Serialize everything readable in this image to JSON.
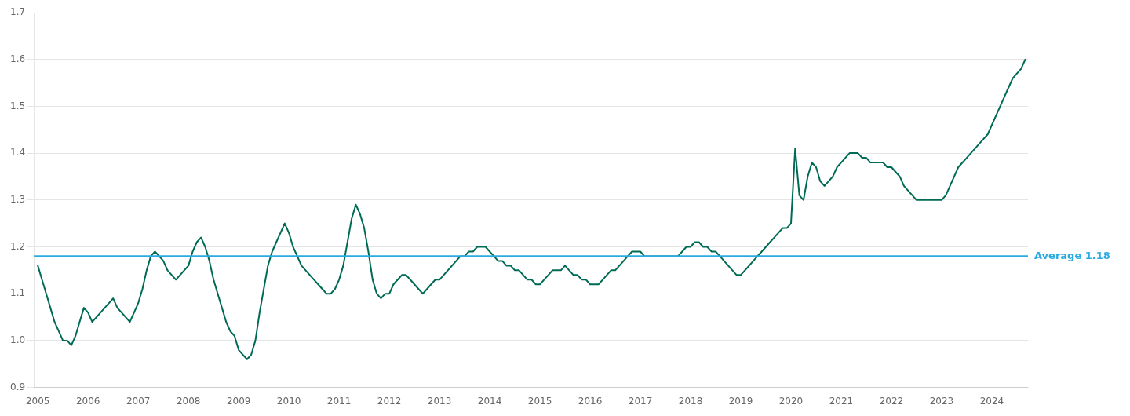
{
  "chart_data": {
    "type": "line",
    "x": [
      2005.0,
      2005.083,
      2005.167,
      2005.25,
      2005.333,
      2005.417,
      2005.5,
      2005.583,
      2005.667,
      2005.75,
      2005.833,
      2005.917,
      2006.0,
      2006.083,
      2006.167,
      2006.25,
      2006.333,
      2006.417,
      2006.5,
      2006.583,
      2006.667,
      2006.75,
      2006.833,
      2006.917,
      2007.0,
      2007.083,
      2007.167,
      2007.25,
      2007.333,
      2007.417,
      2007.5,
      2007.583,
      2007.667,
      2007.75,
      2007.833,
      2007.917,
      2008.0,
      2008.083,
      2008.167,
      2008.25,
      2008.333,
      2008.417,
      2008.5,
      2008.583,
      2008.667,
      2008.75,
      2008.833,
      2008.917,
      2009.0,
      2009.083,
      2009.167,
      2009.25,
      2009.333,
      2009.417,
      2009.5,
      2009.583,
      2009.667,
      2009.75,
      2009.833,
      2009.917,
      2010.0,
      2010.083,
      2010.167,
      2010.25,
      2010.333,
      2010.417,
      2010.5,
      2010.583,
      2010.667,
      2010.75,
      2010.833,
      2010.917,
      2011.0,
      2011.083,
      2011.167,
      2011.25,
      2011.333,
      2011.417,
      2011.5,
      2011.583,
      2011.667,
      2011.75,
      2011.833,
      2011.917,
      2012.0,
      2012.083,
      2012.167,
      2012.25,
      2012.333,
      2012.417,
      2012.5,
      2012.583,
      2012.667,
      2012.75,
      2012.833,
      2012.917,
      2013.0,
      2013.083,
      2013.167,
      2013.25,
      2013.333,
      2013.417,
      2013.5,
      2013.583,
      2013.667,
      2013.75,
      2013.833,
      2013.917,
      2014.0,
      2014.083,
      2014.167,
      2014.25,
      2014.333,
      2014.417,
      2014.5,
      2014.583,
      2014.667,
      2014.75,
      2014.833,
      2014.917,
      2015.0,
      2015.083,
      2015.167,
      2015.25,
      2015.333,
      2015.417,
      2015.5,
      2015.583,
      2015.667,
      2015.75,
      2015.833,
      2015.917,
      2016.0,
      2016.083,
      2016.167,
      2016.25,
      2016.333,
      2016.417,
      2016.5,
      2016.583,
      2016.667,
      2016.75,
      2016.833,
      2016.917,
      2017.0,
      2017.083,
      2017.167,
      2017.25,
      2017.333,
      2017.417,
      2017.5,
      2017.583,
      2017.667,
      2017.75,
      2017.833,
      2017.917,
      2018.0,
      2018.083,
      2018.167,
      2018.25,
      2018.333,
      2018.417,
      2018.5,
      2018.583,
      2018.667,
      2018.75,
      2018.833,
      2018.917,
      2019.0,
      2019.083,
      2019.167,
      2019.25,
      2019.333,
      2019.417,
      2019.5,
      2019.583,
      2019.667,
      2019.75,
      2019.833,
      2019.917,
      2020.0,
      2020.083,
      2020.167,
      2020.25,
      2020.333,
      2020.417,
      2020.5,
      2020.583,
      2020.667,
      2020.75,
      2020.833,
      2020.917,
      2021.0,
      2021.083,
      2021.167,
      2021.25,
      2021.333,
      2021.417,
      2021.5,
      2021.583,
      2021.667,
      2021.75,
      2021.833,
      2021.917,
      2022.0,
      2022.083,
      2022.167,
      2022.25,
      2022.333,
      2022.417,
      2022.5,
      2022.583,
      2022.667,
      2022.75,
      2022.833,
      2022.917,
      2023.0,
      2023.083,
      2023.167,
      2023.25,
      2023.333,
      2023.417,
      2023.5,
      2023.583,
      2023.667,
      2023.75,
      2023.833,
      2023.917,
      2024.0,
      2024.083,
      2024.167,
      2024.25,
      2024.333,
      2024.417,
      2024.5,
      2024.583,
      2024.667
    ],
    "series": [
      {
        "color": "#006B54",
        "values": [
          1.16,
          1.13,
          1.1,
          1.07,
          1.04,
          1.02,
          1.0,
          1.0,
          0.99,
          1.01,
          1.04,
          1.07,
          1.06,
          1.04,
          1.05,
          1.06,
          1.07,
          1.08,
          1.09,
          1.07,
          1.06,
          1.05,
          1.04,
          1.06,
          1.08,
          1.11,
          1.15,
          1.18,
          1.19,
          1.18,
          1.17,
          1.15,
          1.14,
          1.13,
          1.14,
          1.15,
          1.16,
          1.19,
          1.21,
          1.22,
          1.2,
          1.17,
          1.13,
          1.1,
          1.07,
          1.04,
          1.02,
          1.01,
          0.98,
          0.97,
          0.96,
          0.97,
          1.0,
          1.06,
          1.11,
          1.16,
          1.19,
          1.21,
          1.23,
          1.25,
          1.23,
          1.2,
          1.18,
          1.16,
          1.15,
          1.14,
          1.13,
          1.12,
          1.11,
          1.1,
          1.1,
          1.11,
          1.13,
          1.16,
          1.21,
          1.26,
          1.29,
          1.27,
          1.24,
          1.19,
          1.13,
          1.1,
          1.09,
          1.1,
          1.1,
          1.12,
          1.13,
          1.14,
          1.14,
          1.13,
          1.12,
          1.11,
          1.1,
          1.11,
          1.12,
          1.13,
          1.13,
          1.14,
          1.15,
          1.16,
          1.17,
          1.18,
          1.18,
          1.19,
          1.19,
          1.2,
          1.2,
          1.2,
          1.19,
          1.18,
          1.17,
          1.17,
          1.16,
          1.16,
          1.15,
          1.15,
          1.14,
          1.13,
          1.13,
          1.12,
          1.12,
          1.13,
          1.14,
          1.15,
          1.15,
          1.15,
          1.16,
          1.15,
          1.14,
          1.14,
          1.13,
          1.13,
          1.12,
          1.12,
          1.12,
          1.13,
          1.14,
          1.15,
          1.15,
          1.16,
          1.17,
          1.18,
          1.19,
          1.19,
          1.19,
          1.18,
          1.18,
          1.18,
          1.18,
          1.18,
          1.18,
          1.18,
          1.18,
          1.18,
          1.19,
          1.2,
          1.2,
          1.21,
          1.21,
          1.2,
          1.2,
          1.19,
          1.19,
          1.18,
          1.17,
          1.16,
          1.15,
          1.14,
          1.14,
          1.15,
          1.16,
          1.17,
          1.18,
          1.19,
          1.2,
          1.21,
          1.22,
          1.23,
          1.24,
          1.24,
          1.25,
          1.41,
          1.31,
          1.3,
          1.35,
          1.38,
          1.37,
          1.34,
          1.33,
          1.34,
          1.35,
          1.37,
          1.38,
          1.39,
          1.4,
          1.4,
          1.4,
          1.39,
          1.39,
          1.38,
          1.38,
          1.38,
          1.38,
          1.37,
          1.37,
          1.36,
          1.35,
          1.33,
          1.32,
          1.31,
          1.3,
          1.3,
          1.3,
          1.3,
          1.3,
          1.3,
          1.3,
          1.31,
          1.33,
          1.35,
          1.37,
          1.38,
          1.39,
          1.4,
          1.41,
          1.42,
          1.43,
          1.44,
          1.46,
          1.48,
          1.5,
          1.52,
          1.54,
          1.56,
          1.57,
          1.58,
          1.6
        ]
      }
    ],
    "xlim": [
      2004.92,
      2024.72
    ],
    "xticks": [
      2005,
      2006,
      2007,
      2008,
      2009,
      2010,
      2011,
      2012,
      2013,
      2014,
      2015,
      2016,
      2017,
      2018,
      2019,
      2020,
      2021,
      2022,
      2023,
      2024
    ],
    "ylim": [
      0.9,
      1.7
    ],
    "yticks": [
      0.9,
      {
        "value": 1.0,
        "label": "1.0"
      },
      1.1,
      1.2,
      1.3,
      1.4,
      1.5,
      1.6,
      1.7
    ],
    "grid": true,
    "annotations": [
      {
        "type": "hline",
        "y": 1.18,
        "label": "Average 1.18",
        "color": "#29ABE2"
      }
    ]
  }
}
